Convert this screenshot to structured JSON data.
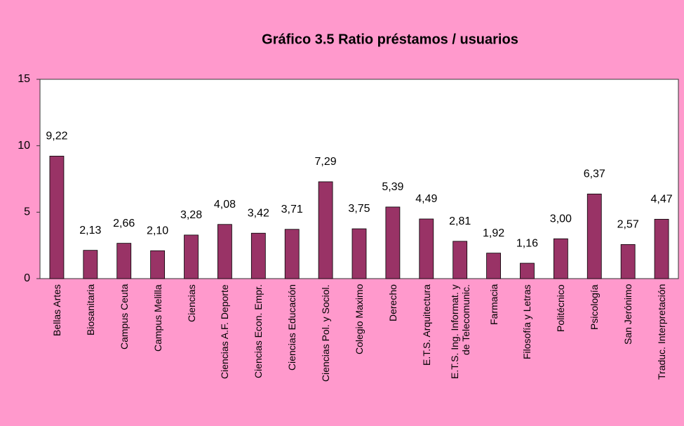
{
  "chart_data": {
    "type": "bar",
    "title": "Gráfico 3.5 Ratio préstamos / usuarios",
    "categories": [
      "Bellas Artes",
      "Biosanitaria",
      "Campus Ceuta",
      "Campus Melilla",
      "Ciencias",
      "Ciencias A.F. Deporte",
      "Ciencias Econ. Empr.",
      "Ciencias Educación",
      "Ciencias Pol. y Sociol.",
      "Colegio Maximo",
      "Derecho",
      "E.T.S. Arquitectura",
      "E.T.S. Ing. Informat. y\nde Telecomunic.",
      "Farmacia",
      "Filosofía y Letras",
      "Politécnico",
      "Psicología",
      "San Jerónimo",
      "Traduc. Interpretación"
    ],
    "values": [
      9.22,
      2.13,
      2.66,
      2.1,
      3.28,
      4.08,
      3.42,
      3.71,
      7.29,
      3.75,
      5.39,
      4.49,
      2.81,
      1.92,
      1.16,
      3.0,
      6.37,
      2.57,
      4.47
    ],
    "value_labels": [
      "9,22",
      "2,13",
      "2,66",
      "2,10",
      "3,28",
      "4,08",
      "3,42",
      "3,71",
      "7,29",
      "3,75",
      "5,39",
      "4,49",
      "2,81",
      "1,92",
      "1,16",
      "3,00",
      "6,37",
      "2,57",
      "4,47"
    ],
    "color": "#993366",
    "ylim": [
      0,
      15
    ],
    "yticks": [
      0,
      5,
      10,
      15
    ],
    "grid": false
  }
}
